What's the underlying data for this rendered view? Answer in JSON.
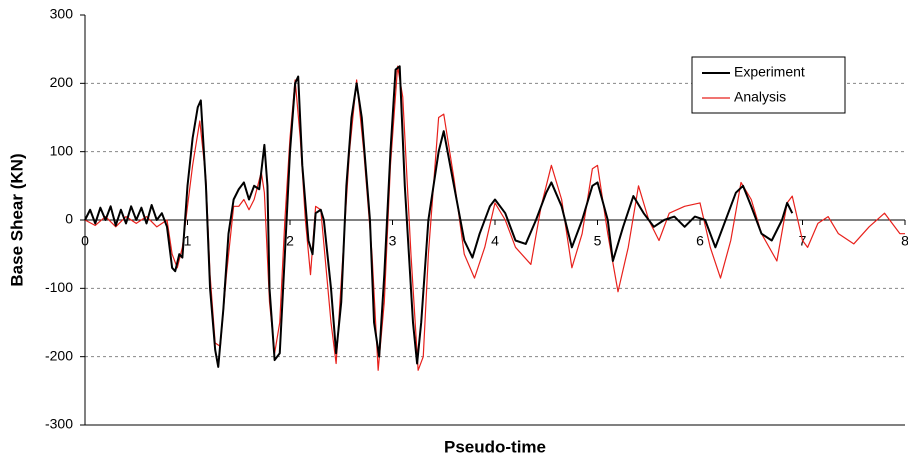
{
  "chart_data": {
    "type": "line",
    "x_label": "Pseudo-time",
    "y_label": "Base Shear (KN)",
    "xlim": [
      0,
      8
    ],
    "xticks": [
      0,
      1,
      2,
      3,
      4,
      5,
      6,
      7,
      8
    ],
    "ylim": [
      -300,
      300
    ],
    "yticks": [
      -300,
      -200,
      -100,
      0,
      100,
      200,
      300
    ],
    "grid": true,
    "legend": "upper right",
    "series": [
      {
        "name": "Experiment",
        "color": "#000000",
        "x": [
          0,
          0.05,
          0.1,
          0.15,
          0.2,
          0.25,
          0.3,
          0.35,
          0.4,
          0.45,
          0.5,
          0.55,
          0.6,
          0.65,
          0.7,
          0.75,
          0.8,
          0.85,
          0.88,
          0.92,
          0.95,
          1.0,
          1.05,
          1.1,
          1.13,
          1.18,
          1.22,
          1.27,
          1.3,
          1.35,
          1.4,
          1.45,
          1.5,
          1.55,
          1.6,
          1.65,
          1.7,
          1.75,
          1.78,
          1.8,
          1.85,
          1.9,
          1.95,
          2.0,
          2.05,
          2.08,
          2.12,
          2.18,
          2.22,
          2.25,
          2.3,
          2.33,
          2.4,
          2.45,
          2.5,
          2.55,
          2.6,
          2.65,
          2.7,
          2.78,
          2.82,
          2.87,
          2.92,
          2.98,
          3.03,
          3.07,
          3.12,
          3.2,
          3.24,
          3.28,
          3.35,
          3.45,
          3.5,
          3.6,
          3.7,
          3.78,
          3.85,
          3.95,
          4.0,
          4.1,
          4.2,
          4.3,
          4.4,
          4.5,
          4.55,
          4.65,
          4.75,
          4.85,
          4.95,
          5.0,
          5.1,
          5.15,
          5.25,
          5.35,
          5.45,
          5.55,
          5.65,
          5.75,
          5.85,
          5.95,
          6.05,
          6.15,
          6.25,
          6.35,
          6.42,
          6.5,
          6.6,
          6.7,
          6.8,
          6.85,
          6.9
        ],
        "values": [
          0,
          15,
          -5,
          18,
          0,
          20,
          -8,
          15,
          -5,
          20,
          0,
          18,
          -5,
          22,
          0,
          10,
          -10,
          -70,
          -75,
          -50,
          -55,
          50,
          120,
          165,
          175,
          50,
          -100,
          -190,
          -215,
          -130,
          -20,
          30,
          45,
          55,
          30,
          50,
          45,
          110,
          50,
          -100,
          -205,
          -195,
          -50,
          100,
          200,
          210,
          80,
          -30,
          -50,
          10,
          15,
          0,
          -100,
          -195,
          -120,
          50,
          150,
          200,
          150,
          0,
          -150,
          -200,
          -80,
          100,
          220,
          225,
          50,
          -150,
          -210,
          -150,
          0,
          100,
          130,
          50,
          -30,
          -55,
          -20,
          20,
          30,
          10,
          -30,
          -35,
          0,
          40,
          55,
          20,
          -40,
          0,
          50,
          55,
          0,
          -60,
          -10,
          35,
          10,
          -10,
          0,
          5,
          -10,
          5,
          0,
          -40,
          0,
          40,
          50,
          20,
          -20,
          -30,
          0,
          25,
          10
        ]
      },
      {
        "name": "Analysis",
        "color": "#e8211c",
        "x": [
          0,
          0.1,
          0.2,
          0.3,
          0.4,
          0.5,
          0.6,
          0.7,
          0.8,
          0.85,
          0.9,
          0.95,
          1.0,
          1.05,
          1.12,
          1.18,
          1.22,
          1.27,
          1.32,
          1.38,
          1.45,
          1.5,
          1.55,
          1.6,
          1.65,
          1.72,
          1.75,
          1.8,
          1.85,
          1.9,
          1.95,
          2.0,
          2.05,
          2.1,
          2.15,
          2.2,
          2.25,
          2.3,
          2.4,
          2.45,
          2.5,
          2.58,
          2.65,
          2.72,
          2.8,
          2.86,
          2.92,
          2.98,
          3.05,
          3.1,
          3.18,
          3.25,
          3.3,
          3.35,
          3.45,
          3.5,
          3.6,
          3.7,
          3.8,
          3.9,
          4.0,
          4.1,
          4.2,
          4.35,
          4.45,
          4.55,
          4.65,
          4.75,
          4.85,
          4.95,
          5.0,
          5.1,
          5.2,
          5.3,
          5.4,
          5.5,
          5.6,
          5.7,
          5.85,
          6.0,
          6.1,
          6.2,
          6.3,
          6.4,
          6.5,
          6.6,
          6.75,
          6.85,
          6.9,
          7.0,
          7.05,
          7.15,
          7.25,
          7.35,
          7.5,
          7.65,
          7.8,
          7.95,
          8.0
        ],
        "values": [
          0,
          -8,
          5,
          -10,
          5,
          -5,
          5,
          -10,
          0,
          -50,
          -70,
          -40,
          20,
          80,
          145,
          60,
          -80,
          -180,
          -185,
          -80,
          20,
          20,
          30,
          15,
          30,
          70,
          40,
          -120,
          -195,
          -150,
          0,
          120,
          205,
          120,
          0,
          -80,
          20,
          15,
          -150,
          -210,
          -90,
          100,
          205,
          100,
          -50,
          -220,
          -120,
          80,
          225,
          180,
          -50,
          -220,
          -200,
          -50,
          150,
          155,
          60,
          -50,
          -85,
          -40,
          25,
          0,
          -40,
          -65,
          20,
          80,
          30,
          -70,
          -20,
          75,
          80,
          -20,
          -105,
          -40,
          50,
          0,
          -30,
          10,
          20,
          25,
          -40,
          -85,
          -30,
          55,
          30,
          -20,
          -60,
          25,
          35,
          -30,
          -40,
          -5,
          5,
          -20,
          -35,
          -10,
          10,
          -20,
          -20
        ]
      }
    ]
  }
}
